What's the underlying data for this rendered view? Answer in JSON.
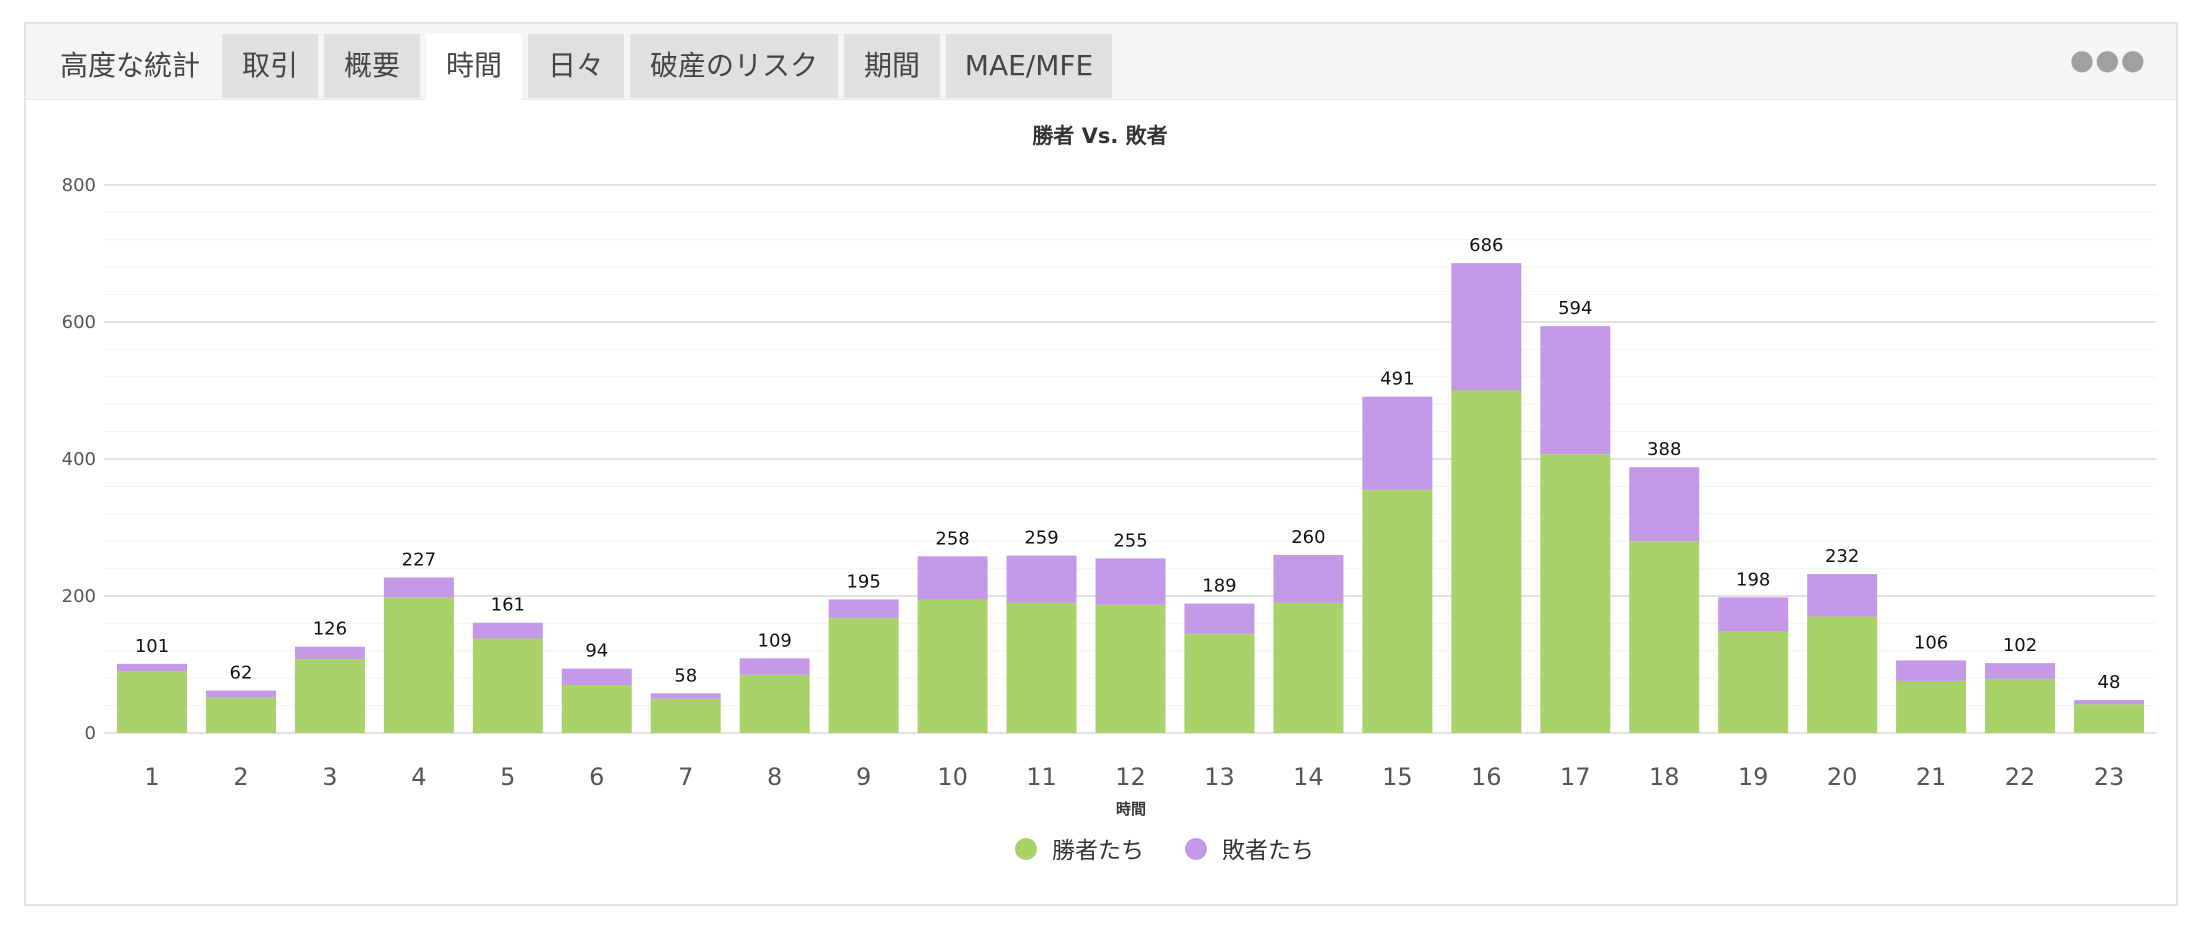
{
  "tabs": {
    "title": "高度な統計",
    "items": [
      "取引",
      "概要",
      "時間",
      "日々",
      "破産のリスク",
      "期間",
      "MAE/MFE"
    ],
    "active_index": 2,
    "more_icon": "more-horizontal-icon"
  },
  "colors": {
    "winners": "#aad26a",
    "losers": "#c49ae8"
  },
  "chart_data": {
    "type": "bar",
    "stacked": true,
    "title": "勝者 Vs. 敗者",
    "xlabel": "時間",
    "ylabel": "",
    "ylim": [
      0,
      800
    ],
    "yticks": [
      0,
      200,
      400,
      600,
      800
    ],
    "grid": true,
    "legend_position": "bottom",
    "categories": [
      "1",
      "2",
      "3",
      "4",
      "5",
      "6",
      "7",
      "8",
      "9",
      "10",
      "11",
      "12",
      "13",
      "14",
      "15",
      "16",
      "17",
      "18",
      "19",
      "20",
      "21",
      "22",
      "23"
    ],
    "series": [
      {
        "name": "勝者たち",
        "values": [
          90,
          52,
          108,
          198,
          138,
          70,
          50,
          85,
          168,
          195,
          190,
          187,
          145,
          190,
          355,
          500,
          407,
          280,
          148,
          170,
          76,
          79,
          42
        ]
      },
      {
        "name": "敗者たち",
        "values": [
          11,
          10,
          18,
          29,
          23,
          24,
          8,
          24,
          27,
          63,
          69,
          68,
          44,
          70,
          136,
          186,
          187,
          108,
          50,
          62,
          30,
          23,
          6
        ]
      }
    ],
    "totals": [
      101,
      62,
      126,
      227,
      161,
      94,
      58,
      109,
      195,
      258,
      259,
      255,
      189,
      260,
      491,
      686,
      594,
      388,
      198,
      232,
      106,
      102,
      48
    ]
  }
}
